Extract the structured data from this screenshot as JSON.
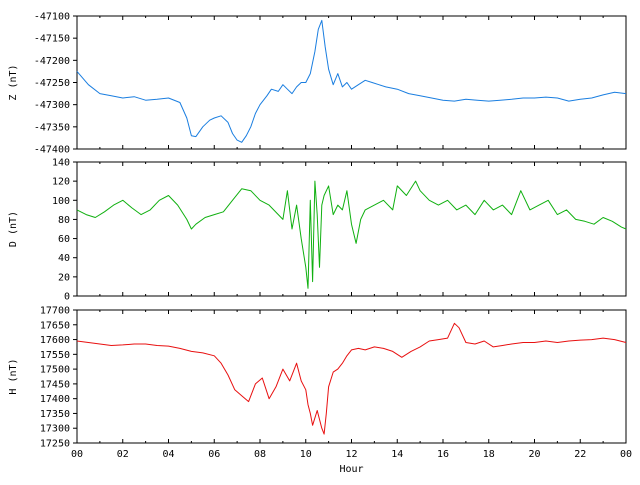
{
  "chart_data": {
    "type": "line",
    "xlabel": "Hour",
    "x_tick_labels": [
      "00",
      "02",
      "04",
      "06",
      "08",
      "10",
      "12",
      "14",
      "16",
      "18",
      "20",
      "22",
      "00"
    ],
    "xlim": [
      0,
      24
    ],
    "grid": false,
    "panels": [
      {
        "name": "Z",
        "ylabel": "Z (nT)",
        "color": "#1a7ee0",
        "ylim": [
          -47400,
          -47100
        ],
        "y_ticks": [
          -47100,
          -47150,
          -47200,
          -47250,
          -47300,
          -47350,
          -47400
        ],
        "x": [
          0,
          0.5,
          1,
          1.5,
          2,
          2.5,
          3,
          3.5,
          4,
          4.5,
          4.8,
          5,
          5.2,
          5.5,
          5.8,
          6,
          6.3,
          6.6,
          6.8,
          7,
          7.2,
          7.4,
          7.6,
          7.8,
          8,
          8.3,
          8.5,
          8.8,
          9,
          9.2,
          9.4,
          9.6,
          9.8,
          10,
          10.2,
          10.4,
          10.55,
          10.7,
          10.85,
          11,
          11.2,
          11.4,
          11.6,
          11.8,
          12,
          12.3,
          12.6,
          12.9,
          13.2,
          13.5,
          14,
          14.5,
          15,
          15.5,
          16,
          16.5,
          17,
          17.5,
          18,
          18.5,
          19,
          19.5,
          20,
          20.5,
          21,
          21.5,
          22,
          22.5,
          23,
          23.5,
          24
        ],
        "y": [
          -47225,
          -47255,
          -47275,
          -47280,
          -47285,
          -47282,
          -47290,
          -47288,
          -47285,
          -47295,
          -47330,
          -47370,
          -47372,
          -47350,
          -47335,
          -47330,
          -47325,
          -47340,
          -47365,
          -47380,
          -47385,
          -47370,
          -47350,
          -47320,
          -47300,
          -47280,
          -47265,
          -47270,
          -47255,
          -47265,
          -47275,
          -47260,
          -47250,
          -47250,
          -47230,
          -47180,
          -47130,
          -47110,
          -47170,
          -47220,
          -47255,
          -47230,
          -47260,
          -47250,
          -47265,
          -47255,
          -47245,
          -47250,
          -47255,
          -47260,
          -47265,
          -47275,
          -47280,
          -47285,
          -47290,
          -47292,
          -47288,
          -47290,
          -47292,
          -47290,
          -47288,
          -47285,
          -47285,
          -47283,
          -47285,
          -47292,
          -47288,
          -47285,
          -47278,
          -47272,
          -47275
        ]
      },
      {
        "name": "D",
        "ylabel": "D (nT)",
        "color": "#10b010",
        "ylim": [
          0,
          140
        ],
        "y_ticks": [
          0,
          20,
          40,
          60,
          80,
          100,
          120,
          140
        ],
        "x": [
          0,
          0.4,
          0.8,
          1.2,
          1.6,
          2,
          2.4,
          2.8,
          3.2,
          3.6,
          4,
          4.4,
          4.8,
          5,
          5.2,
          5.6,
          6,
          6.4,
          6.8,
          7.2,
          7.6,
          8,
          8.4,
          8.8,
          9,
          9.2,
          9.4,
          9.6,
          9.8,
          10,
          10.1,
          10.2,
          10.3,
          10.4,
          10.5,
          10.6,
          10.7,
          10.8,
          11,
          11.2,
          11.4,
          11.6,
          11.8,
          12,
          12.2,
          12.4,
          12.6,
          13,
          13.4,
          13.8,
          14,
          14.4,
          14.8,
          15,
          15.4,
          15.8,
          16.2,
          16.6,
          17,
          17.4,
          17.8,
          18.2,
          18.6,
          19,
          19.4,
          19.8,
          20.2,
          20.6,
          21,
          21.4,
          21.8,
          22.2,
          22.6,
          23,
          23.4,
          23.8,
          24
        ],
        "y": [
          90,
          85,
          82,
          88,
          95,
          100,
          92,
          85,
          90,
          100,
          105,
          95,
          80,
          70,
          75,
          82,
          85,
          88,
          100,
          112,
          110,
          100,
          95,
          85,
          80,
          110,
          70,
          95,
          60,
          30,
          8,
          100,
          15,
          120,
          85,
          30,
          95,
          105,
          115,
          85,
          95,
          90,
          110,
          75,
          55,
          80,
          90,
          95,
          100,
          90,
          115,
          105,
          120,
          110,
          100,
          95,
          100,
          90,
          95,
          85,
          100,
          90,
          95,
          85,
          110,
          90,
          95,
          100,
          85,
          90,
          80,
          78,
          75,
          82,
          78,
          72,
          70
        ]
      },
      {
        "name": "H",
        "ylabel": "H (nT)",
        "color": "#e81010",
        "ylim": [
          17250,
          17700
        ],
        "y_ticks": [
          17250,
          17300,
          17350,
          17400,
          17450,
          17500,
          17550,
          17600,
          17650,
          17700
        ],
        "x": [
          0,
          0.5,
          1,
          1.5,
          2,
          2.5,
          3,
          3.5,
          4,
          4.5,
          5,
          5.5,
          6,
          6.3,
          6.6,
          6.9,
          7.2,
          7.5,
          7.8,
          8.1,
          8.4,
          8.7,
          9,
          9.3,
          9.6,
          9.8,
          10,
          10.1,
          10.2,
          10.3,
          10.5,
          10.7,
          10.8,
          10.9,
          11,
          11.2,
          11.4,
          11.6,
          11.8,
          12,
          12.3,
          12.6,
          13,
          13.4,
          13.8,
          14.2,
          14.6,
          15,
          15.4,
          15.8,
          16.2,
          16.5,
          16.7,
          17,
          17.4,
          17.8,
          18.2,
          18.6,
          19,
          19.5,
          20,
          20.5,
          21,
          21.5,
          22,
          22.5,
          23,
          23.5,
          24
        ],
        "y": [
          17595,
          17590,
          17585,
          17580,
          17582,
          17585,
          17585,
          17580,
          17578,
          17570,
          17560,
          17555,
          17545,
          17520,
          17480,
          17430,
          17410,
          17390,
          17450,
          17470,
          17400,
          17440,
          17500,
          17460,
          17520,
          17460,
          17430,
          17380,
          17350,
          17310,
          17360,
          17300,
          17280,
          17350,
          17440,
          17490,
          17500,
          17520,
          17545,
          17565,
          17570,
          17565,
          17575,
          17570,
          17560,
          17540,
          17560,
          17575,
          17595,
          17600,
          17605,
          17655,
          17640,
          17590,
          17585,
          17595,
          17575,
          17580,
          17585,
          17590,
          17590,
          17595,
          17590,
          17595,
          17598,
          17600,
          17605,
          17600,
          17590
        ]
      }
    ]
  }
}
